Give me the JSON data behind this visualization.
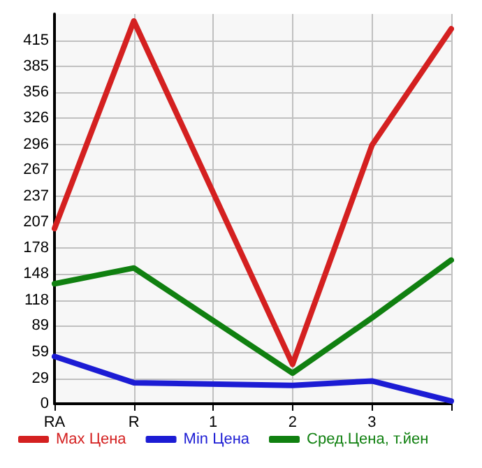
{
  "chart_data": {
    "type": "line",
    "categories": [
      "RA",
      "R",
      "1",
      "2",
      "3",
      null
    ],
    "series": [
      {
        "name": "Max Цена",
        "color": "#d42020",
        "values": [
          200,
          437,
          null,
          45,
          295,
          428
        ]
      },
      {
        "name": "Min Цена",
        "color": "#1c1cd4",
        "values": [
          54,
          24,
          null,
          21,
          26,
          3
        ]
      },
      {
        "name": "Сред.Цена, т.йен",
        "color": "#108010",
        "values": [
          137,
          155,
          null,
          35,
          98,
          164
        ]
      }
    ],
    "ylim": [
      0,
      445
    ],
    "yticks": [
      0,
      29,
      59,
      89,
      118,
      148,
      178,
      207,
      237,
      267,
      296,
      326,
      356,
      385,
      415
    ],
    "grid": true,
    "legend": "bottom",
    "marker": "none",
    "line_style": "solid"
  }
}
